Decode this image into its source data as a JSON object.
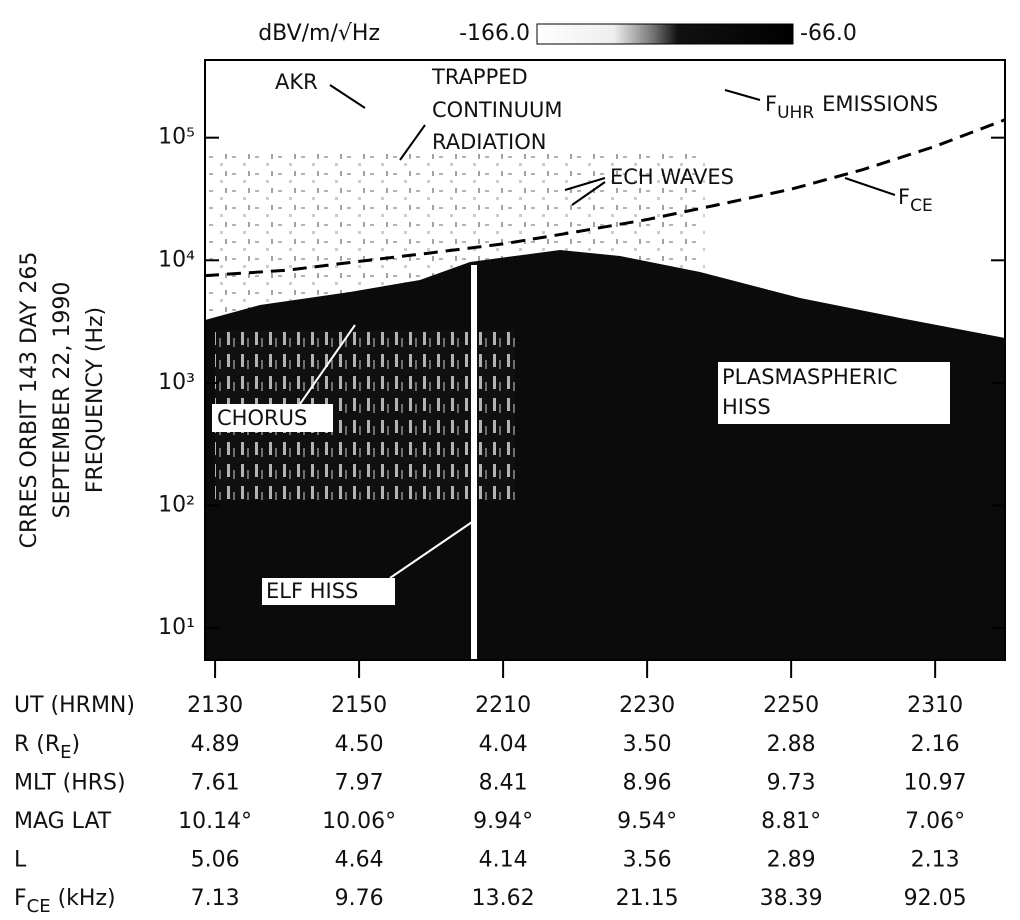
{
  "chart_data": {
    "type": "spectrogram",
    "colorbar": {
      "unit": "dBV/m/√Hz",
      "min_label": "-166.0",
      "max_label": "-66.0"
    },
    "ylabel_lines": [
      "CRRES   ORBIT 143   DAY 265",
      "SEPTEMBER 22, 1990",
      "FREQUENCY (Hz)"
    ],
    "yscale": "log",
    "ylim": [
      5.5,
      430000
    ],
    "yticks": [
      {
        "value": 10,
        "label": "10¹"
      },
      {
        "value": 100,
        "label": "10²"
      },
      {
        "value": 1000,
        "label": "10³"
      },
      {
        "value": 10000,
        "label": "10⁴"
      },
      {
        "value": 100000,
        "label": "10⁵"
      }
    ],
    "xlim": [
      1288.6,
      1399.7
    ],
    "xticks": [
      {
        "value": 1290,
        "label": "2130"
      },
      {
        "value": 1310,
        "label": "2150"
      },
      {
        "value": 1330,
        "label": "2210"
      },
      {
        "value": 1350,
        "label": "2230"
      },
      {
        "value": 1370,
        "label": "2250"
      },
      {
        "value": 1390,
        "label": "2310"
      }
    ],
    "series": [
      {
        "color": "#000000",
        "x": [
          1288.6,
          1300,
          1310,
          1320,
          1330,
          1340,
          1350,
          1360,
          1370,
          1380,
          1390,
          1399.7
        ],
        "values": [
          7500,
          8300,
          9800,
          11500,
          13600,
          17000,
          21500,
          28500,
          38000,
          55000,
          85000,
          140000
        ]
      }
    ],
    "annotations": {
      "akr": "AKR",
      "trapped": [
        "TRAPPED",
        "CONTINUUM",
        "RADIATION"
      ],
      "fuhr": {
        "main": "F",
        "sub": "UHR",
        "rest": "EMISSIONS"
      },
      "ech": "ECH WAVES",
      "fce": {
        "main": "F",
        "sub": "CE"
      },
      "chorus": "CHORUS",
      "hiss": [
        "PLASMASPHERIC",
        "HISS"
      ],
      "elf": "ELF HISS"
    },
    "table": {
      "header": "UT (HRMN)",
      "rows": [
        {
          "label": "R (R",
          "label_sub": "E",
          "label_end": ")",
          "values": [
            "4.89",
            "4.50",
            "4.04",
            "3.50",
            "2.88",
            "2.16"
          ]
        },
        {
          "label": "MLT (HRS)",
          "values": [
            "7.61",
            "7.97",
            "8.41",
            "8.96",
            "9.73",
            "10.97"
          ]
        },
        {
          "label": "MAG LAT",
          "values": [
            "10.14°",
            "10.06°",
            "9.94°",
            "9.54°",
            "8.81°",
            "7.06°"
          ]
        },
        {
          "label": "L",
          "values": [
            "5.06",
            "4.64",
            "4.14",
            "3.56",
            "2.89",
            "2.13"
          ]
        },
        {
          "label": "F",
          "label_sub": "CE",
          "label_end": " (kHz)",
          "values": [
            "7.13",
            "9.76",
            "13.62",
            "21.15",
            "38.39",
            "92.05"
          ]
        }
      ]
    }
  }
}
